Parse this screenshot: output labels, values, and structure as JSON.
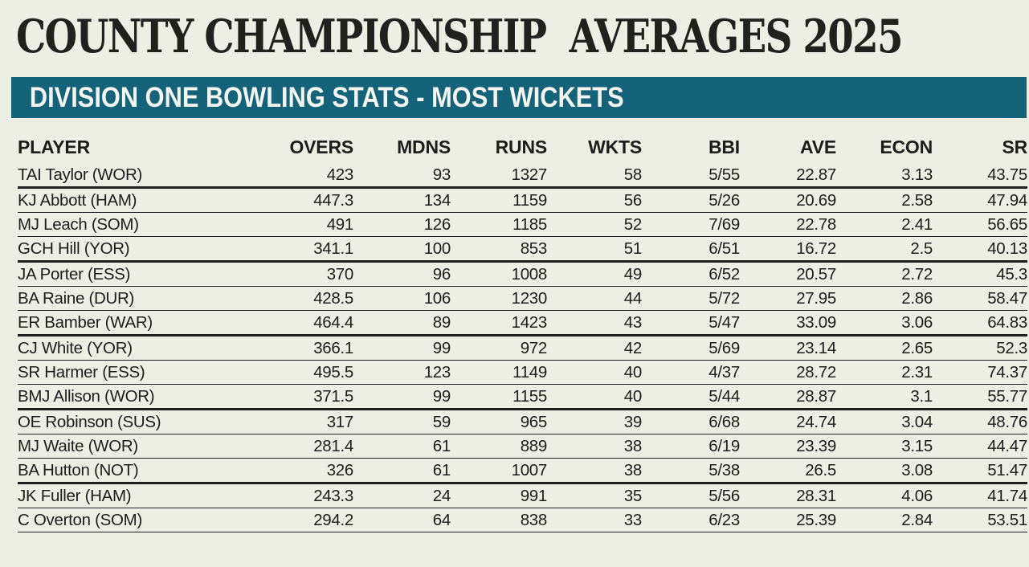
{
  "colors": {
    "page_bg": "#edefe5",
    "banner_bg": "#15637a",
    "banner_text": "#f3f5ee",
    "text": "#1d1d1b",
    "rule": "#1d1d1b"
  },
  "chart_data": {
    "type": "table",
    "title": "COUNTY CHAMPIONSHIP  AVERAGES 2025",
    "subtitle": "DIVISION ONE BOWLING STATS - MOST WICKETS",
    "columns": [
      "PLAYER",
      "OVERS",
      "MDNS",
      "RUNS",
      "WKTS",
      "BBI",
      "AVE",
      "ECON",
      "SR"
    ],
    "rows": [
      [
        "TAI Taylor (WOR)",
        "423",
        "93",
        "1327",
        "58",
        "5/55",
        "22.87",
        "3.13",
        "43.75"
      ],
      [
        "KJ Abbott (HAM)",
        "447.3",
        "134",
        "1159",
        "56",
        "5/26",
        "20.69",
        "2.58",
        "47.94"
      ],
      [
        "MJ Leach (SOM)",
        "491",
        "126",
        "1185",
        "52",
        "7/69",
        "22.78",
        "2.41",
        "56.65"
      ],
      [
        "GCH Hill (YOR)",
        "341.1",
        "100",
        "853",
        "51",
        "6/51",
        "16.72",
        "2.5",
        "40.13"
      ],
      [
        "JA Porter (ESS)",
        "370",
        "96",
        "1008",
        "49",
        "6/52",
        "20.57",
        "2.72",
        "45.3"
      ],
      [
        "BA Raine (DUR)",
        "428.5",
        "106",
        "1230",
        "44",
        "5/72",
        "27.95",
        "2.86",
        "58.47"
      ],
      [
        "ER Bamber (WAR)",
        "464.4",
        "89",
        "1423",
        "43",
        "5/47",
        "33.09",
        "3.06",
        "64.83"
      ],
      [
        "CJ White (YOR)",
        "366.1",
        "99",
        "972",
        "42",
        "5/69",
        "23.14",
        "2.65",
        "52.3"
      ],
      [
        "SR Harmer (ESS)",
        "495.5",
        "123",
        "1149",
        "40",
        "4/37",
        "28.72",
        "2.31",
        "74.37"
      ],
      [
        "BMJ Allison (WOR)",
        "371.5",
        "99",
        "1155",
        "40",
        "5/44",
        "28.87",
        "3.1",
        "55.77"
      ],
      [
        "OE Robinson (SUS)",
        "317",
        "59",
        "965",
        "39",
        "6/68",
        "24.74",
        "3.04",
        "48.76"
      ],
      [
        "MJ Waite (WOR)",
        "281.4",
        "61",
        "889",
        "38",
        "6/19",
        "23.39",
        "3.15",
        "44.47"
      ],
      [
        "BA Hutton (NOT)",
        "326",
        "61",
        "1007",
        "38",
        "5/38",
        "26.5",
        "3.08",
        "51.47"
      ],
      [
        "JK Fuller (HAM)",
        "243.3",
        "24",
        "991",
        "35",
        "5/56",
        "28.31",
        "4.06",
        "41.74"
      ],
      [
        "C Overton (SOM)",
        "294.2",
        "64",
        "838",
        "33",
        "6/23",
        "25.39",
        "2.84",
        "53.51"
      ]
    ]
  }
}
